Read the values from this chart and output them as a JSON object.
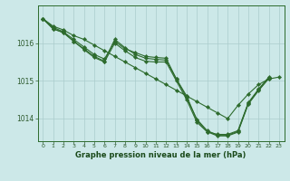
{
  "xlabel": "Graphe pression niveau de la mer (hPa)",
  "xlim": [
    -0.5,
    23.5
  ],
  "ylim": [
    1013.4,
    1017.0
  ],
  "yticks": [
    1014,
    1015,
    1016
  ],
  "xticks": [
    0,
    1,
    2,
    3,
    4,
    5,
    6,
    7,
    8,
    9,
    10,
    11,
    12,
    13,
    14,
    15,
    16,
    17,
    18,
    19,
    20,
    21,
    22,
    23
  ],
  "bg_color": "#cce8e8",
  "grid_color": "#aacccc",
  "line_color": "#2d6b2d",
  "series": [
    [
      1016.65,
      1016.45,
      1016.35,
      1016.2,
      1016.1,
      1015.95,
      1015.8,
      1015.65,
      1015.5,
      1015.35,
      1015.2,
      1015.05,
      1014.9,
      1014.75,
      1014.6,
      1014.45,
      1014.3,
      1014.15,
      1014.0,
      1014.35,
      1014.65,
      1014.9,
      1015.05,
      1015.1
    ],
    [
      1016.65,
      1016.42,
      1016.3,
      1016.1,
      1015.9,
      1015.7,
      1015.58,
      1016.05,
      1015.85,
      1015.75,
      1015.65,
      1015.62,
      1015.6,
      1015.05,
      1014.6,
      1013.95,
      1013.65,
      1013.58,
      1013.58,
      1013.68,
      1014.42,
      1014.78,
      1015.1,
      null
    ],
    [
      1016.65,
      1016.38,
      1016.28,
      1016.05,
      1015.85,
      1015.65,
      1015.52,
      1016.1,
      1015.88,
      1015.7,
      1015.6,
      1015.57,
      1015.55,
      1015.05,
      1014.55,
      1013.98,
      1013.68,
      1013.56,
      1013.56,
      1013.66,
      1014.4,
      1014.76,
      1015.08,
      null
    ],
    [
      1016.65,
      1016.38,
      1016.28,
      1016.05,
      1015.83,
      1015.62,
      1015.5,
      1016.0,
      1015.8,
      1015.62,
      1015.52,
      1015.5,
      1015.5,
      1015.0,
      1014.5,
      1013.9,
      1013.65,
      1013.54,
      1013.54,
      1013.64,
      1014.38,
      1014.74,
      1015.06,
      null
    ]
  ]
}
